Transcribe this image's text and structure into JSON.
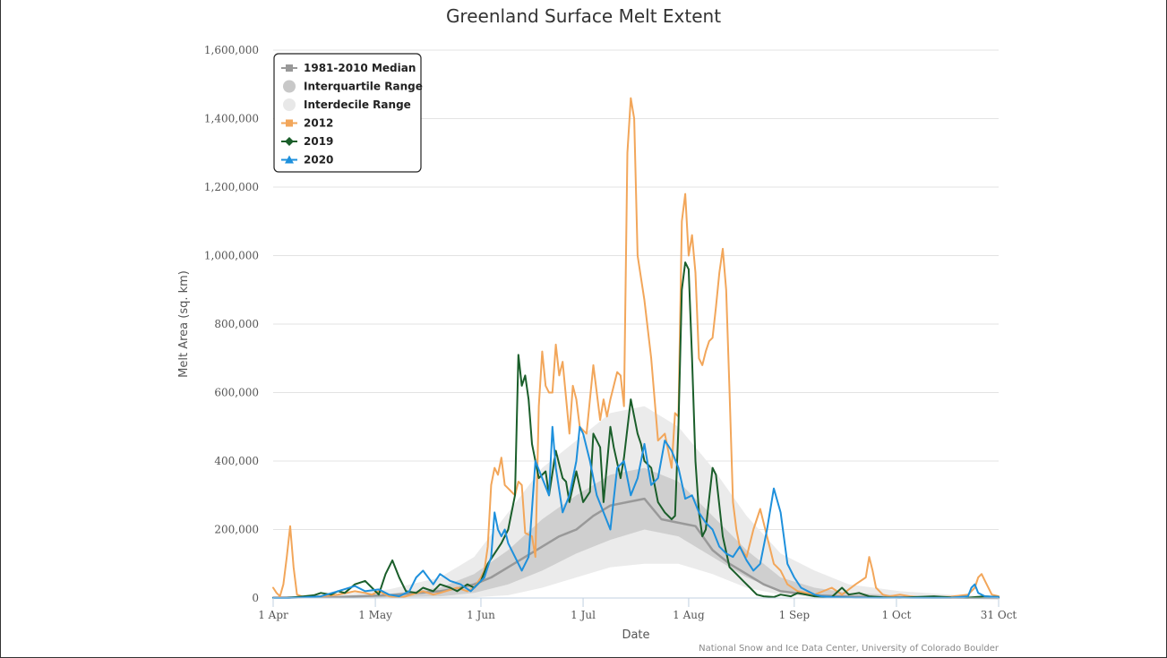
{
  "chart_data": {
    "type": "line",
    "title": "Greenland Surface Melt Extent",
    "xlabel": "Date",
    "ylabel": "Melt Area (sq. km)",
    "credit": "National Snow and Ice Data Center, University of Colorado Boulder",
    "x_ticks": [
      {
        "doy": 91,
        "label": "1 Apr"
      },
      {
        "doy": 121,
        "label": "1 May"
      },
      {
        "doy": 152,
        "label": "1 Jun"
      },
      {
        "doy": 182,
        "label": "1 Jul"
      },
      {
        "doy": 213,
        "label": "1 Aug"
      },
      {
        "doy": 244,
        "label": "1 Sep"
      },
      {
        "doy": 274,
        "label": "1 Oct"
      },
      {
        "doy": 304,
        "label": "31 Oct"
      }
    ],
    "y_ticks": [
      {
        "value": 0,
        "label": "0"
      },
      {
        "value": 200000,
        "label": "200,000"
      },
      {
        "value": 400000,
        "label": "400,000"
      },
      {
        "value": 600000,
        "label": "600,000"
      },
      {
        "value": 800000,
        "label": "800,000"
      },
      {
        "value": 1000000,
        "label": "1,000,000"
      },
      {
        "value": 1200000,
        "label": "1,200,000"
      },
      {
        "value": 1400000,
        "label": "1,400,000"
      },
      {
        "value": 1600000,
        "label": "1,600,000"
      }
    ],
    "xlim": [
      91,
      304
    ],
    "ylim": [
      0,
      1600000
    ],
    "grid": true,
    "legend_position": "top-left",
    "legend": [
      {
        "key": "median",
        "label": "1981-2010 Median",
        "marker": "square",
        "color": "#999999"
      },
      {
        "key": "iqr",
        "label": "Interquartile Range",
        "marker": "circle",
        "color": "#c8c8c8"
      },
      {
        "key": "idr",
        "label": "Interdecile Range",
        "marker": "circle",
        "color": "#e8e8e8"
      },
      {
        "key": "s2012",
        "label": "2012",
        "marker": "square",
        "color": "#f2a65a"
      },
      {
        "key": "s2019",
        "label": "2019",
        "marker": "diamond",
        "color": "#1a5e2a"
      },
      {
        "key": "s2020",
        "label": "2020",
        "marker": "triangle",
        "color": "#1e90dc"
      }
    ],
    "bands": {
      "interdecile": {
        "color": "#ebebeb",
        "x": [
          91,
          110,
          125,
          140,
          150,
          160,
          170,
          180,
          190,
          200,
          210,
          220,
          230,
          240,
          250,
          260,
          275,
          290,
          304
        ],
        "low": [
          0,
          0,
          0,
          0,
          2000,
          8000,
          30000,
          60000,
          90000,
          100000,
          100000,
          70000,
          30000,
          10000,
          3000,
          0,
          0,
          0,
          0
        ],
        "high": [
          5000,
          10000,
          25000,
          60000,
          120000,
          250000,
          380000,
          460000,
          540000,
          560000,
          500000,
          380000,
          240000,
          130000,
          80000,
          40000,
          20000,
          10000,
          5000
        ]
      },
      "interquartile": {
        "color": "#cfcfcf",
        "x": [
          91,
          110,
          125,
          140,
          150,
          160,
          170,
          180,
          190,
          200,
          210,
          220,
          230,
          240,
          250,
          260,
          275,
          290,
          304
        ],
        "low": [
          0,
          0,
          2000,
          5000,
          15000,
          40000,
          80000,
          130000,
          170000,
          200000,
          180000,
          120000,
          60000,
          20000,
          8000,
          2000,
          0,
          0,
          0
        ],
        "high": [
          2000,
          5000,
          12000,
          30000,
          70000,
          140000,
          230000,
          300000,
          360000,
          380000,
          340000,
          240000,
          140000,
          60000,
          30000,
          15000,
          8000,
          4000,
          2000
        ]
      }
    },
    "series": [
      {
        "name": "1981-2010 Median",
        "color": "#999999",
        "width": 2.5,
        "x": [
          91,
          110,
          125,
          140,
          145,
          150,
          155,
          160,
          165,
          170,
          175,
          180,
          185,
          190,
          195,
          200,
          205,
          210,
          215,
          220,
          225,
          230,
          235,
          240,
          250,
          260,
          275,
          290,
          304
        ],
        "y": [
          1000,
          3000,
          8000,
          20000,
          28000,
          40000,
          60000,
          90000,
          120000,
          150000,
          180000,
          200000,
          240000,
          270000,
          280000,
          290000,
          230000,
          220000,
          210000,
          140000,
          100000,
          70000,
          40000,
          20000,
          8000,
          4000,
          2000,
          1000,
          0
        ]
      },
      {
        "name": "2012",
        "color": "#f2a65a",
        "width": 2,
        "x": [
          91,
          92,
          93,
          94,
          95,
          96,
          97,
          98,
          100,
          105,
          110,
          115,
          118,
          120,
          122,
          125,
          128,
          130,
          135,
          138,
          140,
          145,
          148,
          150,
          152,
          153,
          154,
          155,
          156,
          157,
          158,
          159,
          160,
          162,
          163,
          164,
          165,
          167,
          168,
          169,
          170,
          171,
          172,
          173,
          174,
          175,
          176,
          178,
          179,
          180,
          181,
          183,
          185,
          187,
          188,
          189,
          190,
          192,
          193,
          194,
          195,
          196,
          197,
          198,
          200,
          202,
          204,
          206,
          208,
          209,
          210,
          211,
          212,
          213,
          214,
          215,
          216,
          217,
          218,
          219,
          220,
          221,
          222,
          223,
          224,
          225,
          226,
          227,
          228,
          230,
          232,
          234,
          236,
          238,
          240,
          242,
          245,
          250,
          255,
          258,
          262,
          265,
          266,
          267,
          268,
          270,
          272,
          275,
          278,
          280,
          285,
          290,
          295,
          297,
          298,
          299,
          300,
          302,
          304
        ],
        "y": [
          30000,
          15000,
          5000,
          40000,
          120000,
          210000,
          90000,
          10000,
          3000,
          5000,
          10000,
          20000,
          15000,
          10000,
          20000,
          5000,
          2000,
          5000,
          20000,
          10000,
          15000,
          30000,
          20000,
          30000,
          60000,
          80000,
          150000,
          330000,
          380000,
          360000,
          410000,
          330000,
          320000,
          300000,
          340000,
          330000,
          190000,
          180000,
          120000,
          560000,
          720000,
          620000,
          600000,
          600000,
          740000,
          650000,
          690000,
          480000,
          620000,
          580000,
          500000,
          480000,
          680000,
          520000,
          580000,
          530000,
          580000,
          660000,
          650000,
          560000,
          1300000,
          1460000,
          1400000,
          1000000,
          870000,
          700000,
          460000,
          480000,
          380000,
          540000,
          530000,
          1100000,
          1180000,
          1000000,
          1060000,
          950000,
          700000,
          680000,
          720000,
          750000,
          760000,
          850000,
          950000,
          1020000,
          900000,
          600000,
          280000,
          200000,
          150000,
          120000,
          200000,
          260000,
          180000,
          100000,
          80000,
          40000,
          20000,
          10000,
          30000,
          10000,
          40000,
          60000,
          120000,
          80000,
          30000,
          10000,
          5000,
          10000,
          5000,
          3000,
          2000,
          4000,
          10000,
          30000,
          60000,
          70000,
          50000,
          10000,
          5000
        ]
      },
      {
        "name": "2019",
        "color": "#1a5e2a",
        "width": 2,
        "x": [
          91,
          95,
          100,
          103,
          105,
          108,
          110,
          112,
          115,
          118,
          120,
          122,
          124,
          126,
          128,
          130,
          133,
          135,
          138,
          140,
          143,
          145,
          148,
          150,
          152,
          154,
          156,
          158,
          160,
          162,
          163,
          164,
          165,
          166,
          167,
          169,
          171,
          172,
          174,
          176,
          177,
          178,
          180,
          182,
          184,
          185,
          187,
          188,
          190,
          191,
          193,
          194,
          196,
          198,
          199,
          200,
          202,
          204,
          206,
          208,
          209,
          210,
          211,
          212,
          213,
          214,
          215,
          216,
          217,
          218,
          220,
          221,
          223,
          225,
          227,
          229,
          231,
          233,
          235,
          238,
          240,
          243,
          245,
          250,
          255,
          258,
          260,
          263,
          266,
          270,
          275,
          280,
          285,
          290,
          295,
          300,
          304
        ],
        "y": [
          0,
          0,
          5000,
          8000,
          15000,
          10000,
          20000,
          15000,
          40000,
          50000,
          30000,
          10000,
          70000,
          110000,
          60000,
          20000,
          15000,
          30000,
          20000,
          40000,
          30000,
          20000,
          40000,
          30000,
          50000,
          100000,
          130000,
          160000,
          200000,
          300000,
          710000,
          620000,
          650000,
          580000,
          450000,
          350000,
          370000,
          300000,
          430000,
          350000,
          340000,
          280000,
          370000,
          280000,
          310000,
          480000,
          440000,
          280000,
          500000,
          440000,
          350000,
          410000,
          580000,
          480000,
          450000,
          400000,
          380000,
          280000,
          250000,
          230000,
          240000,
          500000,
          900000,
          980000,
          960000,
          700000,
          400000,
          250000,
          180000,
          200000,
          380000,
          360000,
          180000,
          90000,
          70000,
          50000,
          30000,
          10000,
          5000,
          3000,
          10000,
          5000,
          15000,
          5000,
          3000,
          30000,
          10000,
          15000,
          5000,
          2000,
          1000,
          3000,
          5000,
          2000,
          1000,
          5000,
          3000
        ]
      },
      {
        "name": "2020",
        "color": "#1e90dc",
        "width": 2,
        "x": [
          91,
          95,
          100,
          105,
          110,
          115,
          118,
          122,
          125,
          128,
          131,
          133,
          135,
          138,
          140,
          143,
          146,
          149,
          151,
          153,
          155,
          156,
          157,
          158,
          159,
          160,
          162,
          164,
          166,
          168,
          170,
          172,
          173,
          174,
          176,
          178,
          180,
          181,
          182,
          184,
          186,
          188,
          190,
          192,
          194,
          196,
          198,
          200,
          202,
          204,
          206,
          208,
          210,
          212,
          214,
          216,
          218,
          220,
          222,
          224,
          226,
          228,
          230,
          232,
          234,
          236,
          238,
          240,
          242,
          244,
          246,
          248,
          250,
          252,
          255,
          258,
          262,
          265,
          270,
          275,
          280,
          285,
          290,
          295,
          296,
          297,
          298,
          300,
          304
        ],
        "y": [
          0,
          0,
          2000,
          5000,
          20000,
          35000,
          20000,
          25000,
          10000,
          5000,
          20000,
          60000,
          80000,
          40000,
          70000,
          50000,
          40000,
          20000,
          40000,
          60000,
          120000,
          250000,
          200000,
          180000,
          200000,
          160000,
          120000,
          80000,
          120000,
          400000,
          350000,
          300000,
          500000,
          380000,
          250000,
          300000,
          400000,
          500000,
          480000,
          400000,
          300000,
          250000,
          200000,
          380000,
          400000,
          300000,
          350000,
          450000,
          330000,
          350000,
          460000,
          430000,
          380000,
          290000,
          300000,
          250000,
          220000,
          200000,
          150000,
          130000,
          120000,
          150000,
          110000,
          80000,
          100000,
          200000,
          320000,
          250000,
          100000,
          60000,
          30000,
          20000,
          10000,
          5000,
          3000,
          2000,
          1000,
          1000,
          500,
          1000,
          500,
          500,
          1000,
          5000,
          30000,
          40000,
          15000,
          5000,
          3000
        ]
      }
    ]
  }
}
